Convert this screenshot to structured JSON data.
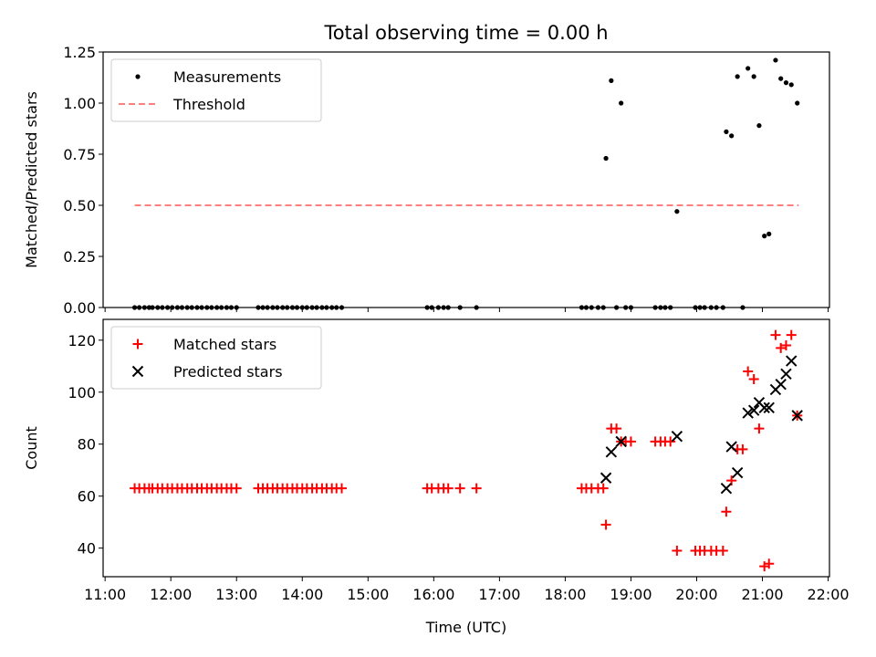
{
  "figure_title": "Total observing time = 0.00 h",
  "chart_data": [
    {
      "type": "scatter",
      "panel": "top",
      "ylabel": "Matched/Predicted stars",
      "xlabel": "",
      "ylim": [
        0,
        1.25
      ],
      "xlim": [
        10.97,
        22.02
      ],
      "yticks": [
        0,
        0.25,
        0.5,
        0.75,
        1.0,
        1.25
      ],
      "ytick_labels": [
        "0.00",
        "0.25",
        "0.50",
        "0.75",
        "1.00",
        "1.25"
      ],
      "xticks": [
        11,
        12,
        13,
        14,
        15,
        16,
        17,
        18,
        19,
        20,
        21,
        22
      ],
      "show_xtick_labels": false,
      "grid": false,
      "legend_placement": "top-left",
      "legend": [
        {
          "label": "Measurements",
          "marker": "dot",
          "color": "#000000"
        },
        {
          "label": "Threshold",
          "marker": "dashed-line",
          "color": "#ff7f7f"
        }
      ],
      "threshold": {
        "name": "Threshold",
        "y": 0.5,
        "x": [
          11.45,
          21.55
        ],
        "color": "#ff7f7f"
      },
      "series": [
        {
          "name": "Measurements",
          "color": "#000000",
          "points": [
            [
              11.45,
              0
            ],
            [
              11.52,
              0
            ],
            [
              11.6,
              0
            ],
            [
              11.67,
              0
            ],
            [
              11.72,
              0
            ],
            [
              11.8,
              0
            ],
            [
              11.87,
              0
            ],
            [
              11.95,
              0
            ],
            [
              12.02,
              0
            ],
            [
              12.1,
              0
            ],
            [
              12.17,
              0
            ],
            [
              12.25,
              0
            ],
            [
              12.32,
              0
            ],
            [
              12.4,
              0
            ],
            [
              12.47,
              0
            ],
            [
              12.55,
              0
            ],
            [
              12.62,
              0
            ],
            [
              12.7,
              0
            ],
            [
              12.77,
              0
            ],
            [
              12.85,
              0
            ],
            [
              12.92,
              0
            ],
            [
              13.0,
              0
            ],
            [
              13.33,
              0
            ],
            [
              13.4,
              0
            ],
            [
              13.47,
              0
            ],
            [
              13.55,
              0
            ],
            [
              13.62,
              0
            ],
            [
              13.7,
              0
            ],
            [
              13.77,
              0
            ],
            [
              13.85,
              0
            ],
            [
              13.92,
              0
            ],
            [
              14.0,
              0
            ],
            [
              14.07,
              0
            ],
            [
              14.15,
              0
            ],
            [
              14.22,
              0
            ],
            [
              14.3,
              0
            ],
            [
              14.37,
              0
            ],
            [
              14.45,
              0
            ],
            [
              14.52,
              0
            ],
            [
              14.6,
              0
            ],
            [
              15.9,
              0
            ],
            [
              15.97,
              0
            ],
            [
              16.07,
              0
            ],
            [
              16.15,
              0
            ],
            [
              16.22,
              0
            ],
            [
              16.4,
              0
            ],
            [
              16.65,
              0
            ],
            [
              18.25,
              0
            ],
            [
              18.32,
              0
            ],
            [
              18.4,
              0
            ],
            [
              18.5,
              0
            ],
            [
              18.58,
              0
            ],
            [
              18.62,
              0.73
            ],
            [
              18.7,
              1.11
            ],
            [
              18.78,
              0
            ],
            [
              18.85,
              1.0
            ],
            [
              18.92,
              0
            ],
            [
              19.0,
              0
            ],
            [
              19.37,
              0
            ],
            [
              19.45,
              0
            ],
            [
              19.52,
              0
            ],
            [
              19.6,
              0
            ],
            [
              19.7,
              0.47
            ],
            [
              19.98,
              0
            ],
            [
              20.05,
              0
            ],
            [
              20.12,
              0
            ],
            [
              20.22,
              0
            ],
            [
              20.3,
              0
            ],
            [
              20.4,
              0
            ],
            [
              20.45,
              0.86
            ],
            [
              20.53,
              0.84
            ],
            [
              20.62,
              1.13
            ],
            [
              20.7,
              0
            ],
            [
              20.78,
              1.17
            ],
            [
              20.87,
              1.13
            ],
            [
              20.95,
              0.89
            ],
            [
              21.03,
              0.35
            ],
            [
              21.1,
              0.36
            ],
            [
              21.2,
              1.21
            ],
            [
              21.28,
              1.12
            ],
            [
              21.36,
              1.1
            ],
            [
              21.44,
              1.09
            ],
            [
              21.53,
              1.0
            ]
          ]
        }
      ]
    },
    {
      "type": "scatter",
      "panel": "bottom",
      "ylabel": "Count",
      "xlabel": "Time (UTC)",
      "ylim": [
        29,
        128
      ],
      "xlim": [
        10.97,
        22.02
      ],
      "yticks": [
        40,
        60,
        80,
        100,
        120
      ],
      "ytick_labels": [
        "40",
        "60",
        "80",
        "100",
        "120"
      ],
      "xticks": [
        11,
        12,
        13,
        14,
        15,
        16,
        17,
        18,
        19,
        20,
        21,
        22
      ],
      "xtick_labels": [
        "11:00",
        "12:00",
        "13:00",
        "14:00",
        "15:00",
        "16:00",
        "17:00",
        "18:00",
        "19:00",
        "20:00",
        "21:00",
        "22:00"
      ],
      "show_xtick_labels": true,
      "grid": false,
      "legend_placement": "top-left",
      "legend": [
        {
          "label": "Matched stars",
          "marker": "plus",
          "color": "#ff0000"
        },
        {
          "label": "Predicted stars",
          "marker": "cross",
          "color": "#000000"
        }
      ],
      "series": [
        {
          "name": "Matched stars",
          "color": "#ff0000",
          "marker": "plus",
          "points": [
            [
              11.45,
              63
            ],
            [
              11.52,
              63
            ],
            [
              11.6,
              63
            ],
            [
              11.67,
              63
            ],
            [
              11.72,
              63
            ],
            [
              11.8,
              63
            ],
            [
              11.87,
              63
            ],
            [
              11.95,
              63
            ],
            [
              12.02,
              63
            ],
            [
              12.1,
              63
            ],
            [
              12.17,
              63
            ],
            [
              12.25,
              63
            ],
            [
              12.32,
              63
            ],
            [
              12.4,
              63
            ],
            [
              12.47,
              63
            ],
            [
              12.55,
              63
            ],
            [
              12.62,
              63
            ],
            [
              12.7,
              63
            ],
            [
              12.77,
              63
            ],
            [
              12.85,
              63
            ],
            [
              12.92,
              63
            ],
            [
              13.0,
              63
            ],
            [
              13.33,
              63
            ],
            [
              13.4,
              63
            ],
            [
              13.47,
              63
            ],
            [
              13.55,
              63
            ],
            [
              13.62,
              63
            ],
            [
              13.7,
              63
            ],
            [
              13.77,
              63
            ],
            [
              13.85,
              63
            ],
            [
              13.92,
              63
            ],
            [
              14.0,
              63
            ],
            [
              14.07,
              63
            ],
            [
              14.15,
              63
            ],
            [
              14.22,
              63
            ],
            [
              14.3,
              63
            ],
            [
              14.37,
              63
            ],
            [
              14.45,
              63
            ],
            [
              14.52,
              63
            ],
            [
              14.6,
              63
            ],
            [
              15.9,
              63
            ],
            [
              15.97,
              63
            ],
            [
              16.07,
              63
            ],
            [
              16.15,
              63
            ],
            [
              16.22,
              63
            ],
            [
              16.4,
              63
            ],
            [
              16.65,
              63
            ],
            [
              18.25,
              63
            ],
            [
              18.32,
              63
            ],
            [
              18.4,
              63
            ],
            [
              18.5,
              63
            ],
            [
              18.58,
              63
            ],
            [
              18.62,
              49
            ],
            [
              18.7,
              86
            ],
            [
              18.78,
              86
            ],
            [
              18.85,
              81
            ],
            [
              18.92,
              81
            ],
            [
              19.0,
              81
            ],
            [
              19.37,
              81
            ],
            [
              19.45,
              81
            ],
            [
              19.52,
              81
            ],
            [
              19.6,
              81
            ],
            [
              19.7,
              39
            ],
            [
              19.98,
              39
            ],
            [
              20.05,
              39
            ],
            [
              20.12,
              39
            ],
            [
              20.22,
              39
            ],
            [
              20.3,
              39
            ],
            [
              20.4,
              39
            ],
            [
              20.45,
              54
            ],
            [
              20.53,
              66
            ],
            [
              20.62,
              78
            ],
            [
              20.7,
              78
            ],
            [
              20.78,
              108
            ],
            [
              20.87,
              105
            ],
            [
              20.95,
              86
            ],
            [
              21.03,
              33
            ],
            [
              21.1,
              34
            ],
            [
              21.2,
              122
            ],
            [
              21.28,
              117
            ],
            [
              21.36,
              118
            ],
            [
              21.44,
              122
            ],
            [
              21.53,
              91
            ]
          ]
        },
        {
          "name": "Predicted stars",
          "color": "#000000",
          "marker": "cross",
          "points": [
            [
              18.62,
              67
            ],
            [
              18.7,
              77
            ],
            [
              18.85,
              81
            ],
            [
              19.7,
              83
            ],
            [
              20.45,
              63
            ],
            [
              20.53,
              79
            ],
            [
              20.62,
              69
            ],
            [
              20.78,
              92
            ],
            [
              20.87,
              93
            ],
            [
              20.95,
              96
            ],
            [
              21.03,
              94
            ],
            [
              21.1,
              94
            ],
            [
              21.2,
              101
            ],
            [
              21.28,
              103
            ],
            [
              21.36,
              107
            ],
            [
              21.44,
              112
            ],
            [
              21.53,
              91
            ]
          ]
        }
      ]
    }
  ]
}
